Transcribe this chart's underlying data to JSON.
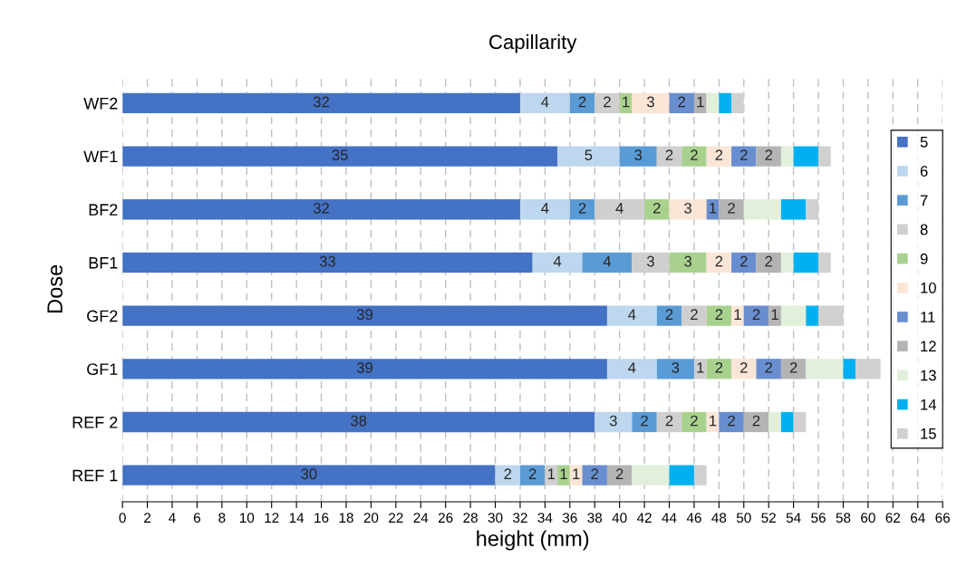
{
  "chart_data": {
    "type": "bar",
    "orientation": "horizontal",
    "stacked": true,
    "title": "Capillarity",
    "xlabel": "height (mm)",
    "ylabel": "Dose",
    "categories": [
      "WF2",
      "WF1",
      "BF2",
      "BF1",
      "GF2",
      "GF1",
      "REF 2",
      "REF 1"
    ],
    "xlim": [
      0,
      66
    ],
    "xticks": [
      0,
      2,
      4,
      6,
      8,
      10,
      12,
      14,
      16,
      18,
      20,
      22,
      24,
      26,
      28,
      30,
      32,
      34,
      36,
      38,
      40,
      42,
      44,
      46,
      48,
      50,
      52,
      54,
      56,
      58,
      60,
      62,
      64,
      66
    ],
    "grid": "x",
    "legend": "right",
    "series": [
      {
        "name": "5",
        "color": "#4472c4",
        "values": [
          32,
          35,
          32,
          33,
          39,
          39,
          38,
          30
        ],
        "value_labels": [
          "32",
          "35",
          "32",
          "33",
          "39",
          "39",
          "38",
          "30"
        ]
      },
      {
        "name": "6",
        "color": "#bdd7ee",
        "values": [
          4,
          5,
          4,
          4,
          4,
          4,
          3,
          2
        ],
        "value_labels": [
          "4",
          "5",
          "4",
          "4",
          "4",
          "4",
          "3",
          "2"
        ]
      },
      {
        "name": "7",
        "color": "#5b9bd5",
        "values": [
          2,
          3,
          2,
          4,
          2,
          3,
          2,
          2
        ],
        "value_labels": [
          "2",
          "3",
          "2",
          "4",
          "2",
          "3",
          "2",
          "2"
        ]
      },
      {
        "name": "8",
        "color": "#d0cece",
        "values": [
          2,
          2,
          4,
          3,
          2,
          1,
          2,
          1
        ],
        "value_labels": [
          "2",
          "2",
          "4",
          "3",
          "2",
          "1",
          "2",
          "1"
        ]
      },
      {
        "name": "9",
        "color": "#a9d18e",
        "values": [
          1,
          2,
          2,
          3,
          2,
          2,
          2,
          1
        ],
        "value_labels": [
          "1",
          "2",
          "2",
          "3",
          "2",
          "2",
          "2",
          "1"
        ]
      },
      {
        "name": "10",
        "color": "#fbe5d6",
        "values": [
          3,
          2,
          3,
          2,
          1,
          2,
          1,
          1
        ],
        "value_labels": [
          "3",
          "2",
          "3",
          "2",
          "1",
          "2",
          "1",
          "1"
        ]
      },
      {
        "name": "11",
        "color": "#698ed0",
        "values": [
          2,
          2,
          1,
          2,
          2,
          2,
          2,
          2
        ],
        "value_labels": [
          "2",
          "2",
          "1",
          "2",
          "2",
          "2",
          "2",
          "2"
        ]
      },
      {
        "name": "12",
        "color": "#b4b4b4",
        "values": [
          1,
          2,
          2,
          2,
          1,
          2,
          2,
          2
        ],
        "value_labels": [
          "1",
          "2",
          "2",
          "2",
          "1",
          "2",
          "2",
          "2"
        ]
      },
      {
        "name": "13",
        "color": "#e2efda",
        "values": [
          1,
          1,
          3,
          1,
          2,
          3,
          1,
          3
        ]
      },
      {
        "name": "14",
        "color": "#00b0f0",
        "values": [
          1,
          2,
          2,
          2,
          1,
          1,
          1,
          2
        ]
      },
      {
        "name": "15",
        "color": "#d0d0d0",
        "values": [
          1,
          1,
          1,
          1,
          2,
          2,
          1,
          1
        ]
      }
    ]
  }
}
